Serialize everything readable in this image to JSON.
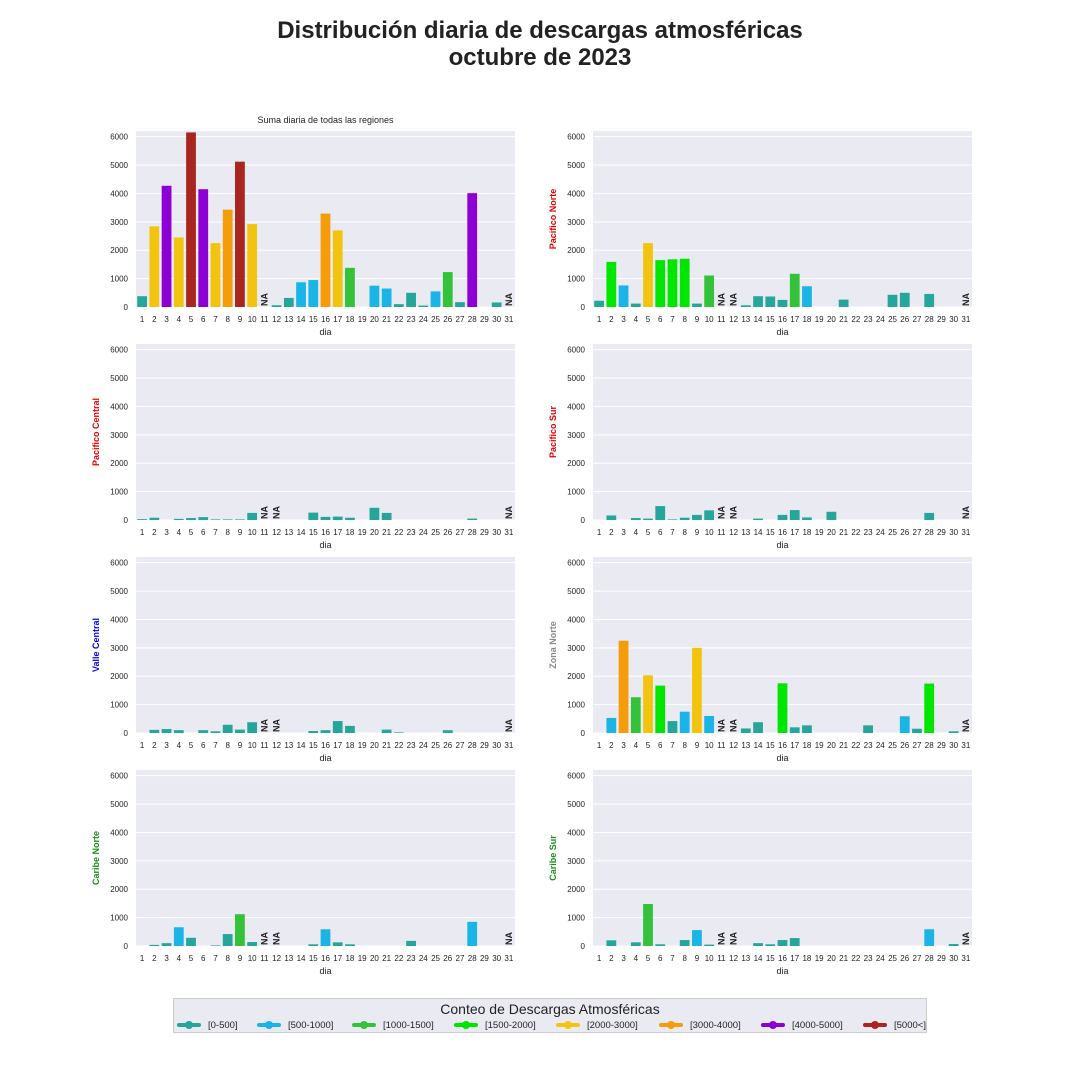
{
  "title": {
    "line1": "Distribución diaria de descargas atmosféricas",
    "line2": "octubre de 2023"
  },
  "legend": {
    "title": "Conteo de Descargas Atmosféricas",
    "items": [
      {
        "label": "[0-500]",
        "color": "#26a69a"
      },
      {
        "label": "[500-1000]",
        "color": "#1ab4e6"
      },
      {
        "label": "[1000-1500]",
        "color": "#33c23a"
      },
      {
        "label": "[1500-2000]",
        "color": "#00e600"
      },
      {
        "label": "[2000-3000]",
        "color": "#f2c40f"
      },
      {
        "label": "[3000-4000]",
        "color": "#f59c0a"
      },
      {
        "label": "[4000-5000]",
        "color": "#8c00d4"
      },
      {
        "label": "[5000<]",
        "color": "#a8261e"
      }
    ]
  },
  "chart_data": [
    {
      "type": "bar",
      "title": "Suma diaria de todas las regiones",
      "ylabel": "",
      "ylabel_color": "#222222",
      "xlabel": "dia",
      "ylim": [
        0,
        6200
      ],
      "yticks": [
        0,
        1000,
        2000,
        3000,
        4000,
        5000,
        6000
      ],
      "categories": [
        "1",
        "2",
        "3",
        "4",
        "5",
        "6",
        "7",
        "8",
        "9",
        "10",
        "11",
        "12",
        "13",
        "14",
        "15",
        "16",
        "17",
        "18",
        "19",
        "20",
        "21",
        "22",
        "23",
        "24",
        "25",
        "26",
        "27",
        "28",
        "29",
        "30",
        "31"
      ],
      "values": [
        380,
        2840,
        4270,
        2450,
        6150,
        4150,
        2250,
        3430,
        5120,
        2920,
        null,
        60,
        320,
        870,
        950,
        3290,
        2700,
        1380,
        0,
        750,
        650,
        100,
        500,
        50,
        550,
        1230,
        170,
        4010,
        0,
        160,
        null
      ],
      "na_label": "NA"
    },
    {
      "type": "bar",
      "title": "",
      "ylabel": "Pacifico Norte",
      "ylabel_color": "#e60000",
      "xlabel": "dia",
      "ylim": [
        0,
        6200
      ],
      "yticks": [
        0,
        1000,
        2000,
        3000,
        4000,
        5000,
        6000
      ],
      "categories": [
        "1",
        "2",
        "3",
        "4",
        "5",
        "6",
        "7",
        "8",
        "9",
        "10",
        "11",
        "12",
        "13",
        "14",
        "15",
        "16",
        "17",
        "18",
        "19",
        "20",
        "21",
        "22",
        "23",
        "24",
        "25",
        "26",
        "27",
        "28",
        "29",
        "30",
        "31"
      ],
      "values": [
        220,
        1590,
        760,
        120,
        2250,
        1650,
        1680,
        1700,
        120,
        1110,
        null,
        null,
        60,
        380,
        370,
        250,
        1170,
        730,
        0,
        0,
        260,
        0,
        0,
        0,
        430,
        500,
        0,
        460,
        0,
        0,
        null
      ],
      "na_label": "NA"
    },
    {
      "type": "bar",
      "title": "",
      "ylabel": "Pacifico Central",
      "ylabel_color": "#e60000",
      "xlabel": "dia",
      "ylim": [
        0,
        6200
      ],
      "yticks": [
        0,
        1000,
        2000,
        3000,
        4000,
        5000,
        6000
      ],
      "categories": [
        "1",
        "2",
        "3",
        "4",
        "5",
        "6",
        "7",
        "8",
        "9",
        "10",
        "11",
        "12",
        "13",
        "14",
        "15",
        "16",
        "17",
        "18",
        "19",
        "20",
        "21",
        "22",
        "23",
        "24",
        "25",
        "26",
        "27",
        "28",
        "29",
        "30",
        "31"
      ],
      "values": [
        30,
        80,
        0,
        40,
        70,
        100,
        20,
        20,
        20,
        250,
        null,
        null,
        0,
        0,
        260,
        110,
        120,
        80,
        0,
        430,
        250,
        0,
        0,
        0,
        0,
        0,
        0,
        50,
        0,
        0,
        null
      ],
      "na_label": "NA"
    },
    {
      "type": "bar",
      "title": "",
      "ylabel": "Pacifico Sur",
      "ylabel_color": "#e60000",
      "xlabel": "dia",
      "ylim": [
        0,
        6200
      ],
      "yticks": [
        0,
        1000,
        2000,
        3000,
        4000,
        5000,
        6000
      ],
      "categories": [
        "1",
        "2",
        "3",
        "4",
        "5",
        "6",
        "7",
        "8",
        "9",
        "10",
        "11",
        "12",
        "13",
        "14",
        "15",
        "16",
        "17",
        "18",
        "19",
        "20",
        "21",
        "22",
        "23",
        "24",
        "25",
        "26",
        "27",
        "28",
        "29",
        "30",
        "31"
      ],
      "values": [
        0,
        160,
        0,
        70,
        50,
        490,
        20,
        80,
        180,
        340,
        null,
        null,
        0,
        50,
        0,
        180,
        350,
        90,
        0,
        290,
        0,
        0,
        0,
        0,
        0,
        0,
        0,
        250,
        0,
        0,
        null
      ],
      "na_label": "NA"
    },
    {
      "type": "bar",
      "title": "",
      "ylabel": "Valle Central",
      "ylabel_color": "#0000e6",
      "xlabel": "dia",
      "ylim": [
        0,
        6200
      ],
      "yticks": [
        0,
        1000,
        2000,
        3000,
        4000,
        5000,
        6000
      ],
      "categories": [
        "1",
        "2",
        "3",
        "4",
        "5",
        "6",
        "7",
        "8",
        "9",
        "10",
        "11",
        "12",
        "13",
        "14",
        "15",
        "16",
        "17",
        "18",
        "19",
        "20",
        "21",
        "22",
        "23",
        "24",
        "25",
        "26",
        "27",
        "28",
        "29",
        "30",
        "31"
      ],
      "values": [
        0,
        110,
        140,
        100,
        0,
        100,
        60,
        290,
        120,
        380,
        null,
        null,
        0,
        0,
        70,
        100,
        420,
        250,
        0,
        0,
        120,
        20,
        0,
        0,
        0,
        100,
        0,
        0,
        0,
        0,
        null
      ],
      "na_label": "NA"
    },
    {
      "type": "bar",
      "title": "",
      "ylabel": "Zona Norte",
      "ylabel_color": "#888888",
      "xlabel": "dia",
      "ylim": [
        0,
        6200
      ],
      "yticks": [
        0,
        1000,
        2000,
        3000,
        4000,
        5000,
        6000
      ],
      "categories": [
        "1",
        "2",
        "3",
        "4",
        "5",
        "6",
        "7",
        "8",
        "9",
        "10",
        "11",
        "12",
        "13",
        "14",
        "15",
        "16",
        "17",
        "18",
        "19",
        "20",
        "21",
        "22",
        "23",
        "24",
        "25",
        "26",
        "27",
        "28",
        "29",
        "30",
        "31"
      ],
      "values": [
        0,
        530,
        3250,
        1260,
        2030,
        1670,
        420,
        750,
        3000,
        600,
        null,
        null,
        160,
        380,
        0,
        1750,
        200,
        270,
        0,
        0,
        0,
        0,
        270,
        0,
        0,
        590,
        150,
        1740,
        0,
        60,
        null
      ],
      "na_label": "NA"
    },
    {
      "type": "bar",
      "title": "",
      "ylabel": "Caribe Norte",
      "ylabel_color": "#1a8c1a",
      "xlabel": "dia",
      "ylim": [
        0,
        6200
      ],
      "yticks": [
        0,
        1000,
        2000,
        3000,
        4000,
        5000,
        6000
      ],
      "categories": [
        "1",
        "2",
        "3",
        "4",
        "5",
        "6",
        "7",
        "8",
        "9",
        "10",
        "11",
        "12",
        "13",
        "14",
        "15",
        "16",
        "17",
        "18",
        "19",
        "20",
        "21",
        "22",
        "23",
        "24",
        "25",
        "26",
        "27",
        "28",
        "29",
        "30",
        "31"
      ],
      "values": [
        0,
        40,
        100,
        660,
        290,
        0,
        20,
        420,
        1120,
        140,
        null,
        null,
        0,
        0,
        60,
        590,
        130,
        60,
        0,
        0,
        0,
        0,
        180,
        0,
        0,
        0,
        0,
        850,
        0,
        0,
        null
      ],
      "na_label": "NA"
    },
    {
      "type": "bar",
      "title": "",
      "ylabel": "Caribe Sur",
      "ylabel_color": "#1a8c1a",
      "xlabel": "dia",
      "ylim": [
        0,
        6200
      ],
      "yticks": [
        0,
        1000,
        2000,
        3000,
        4000,
        5000,
        6000
      ],
      "categories": [
        "1",
        "2",
        "3",
        "4",
        "5",
        "6",
        "7",
        "8",
        "9",
        "10",
        "11",
        "12",
        "13",
        "14",
        "15",
        "16",
        "17",
        "18",
        "19",
        "20",
        "21",
        "22",
        "23",
        "24",
        "25",
        "26",
        "27",
        "28",
        "29",
        "30",
        "31"
      ],
      "values": [
        0,
        200,
        0,
        130,
        1480,
        60,
        0,
        210,
        560,
        50,
        null,
        null,
        0,
        100,
        60,
        210,
        280,
        0,
        0,
        0,
        0,
        0,
        0,
        0,
        0,
        0,
        0,
        590,
        0,
        70,
        null
      ],
      "na_label": "NA"
    }
  ]
}
